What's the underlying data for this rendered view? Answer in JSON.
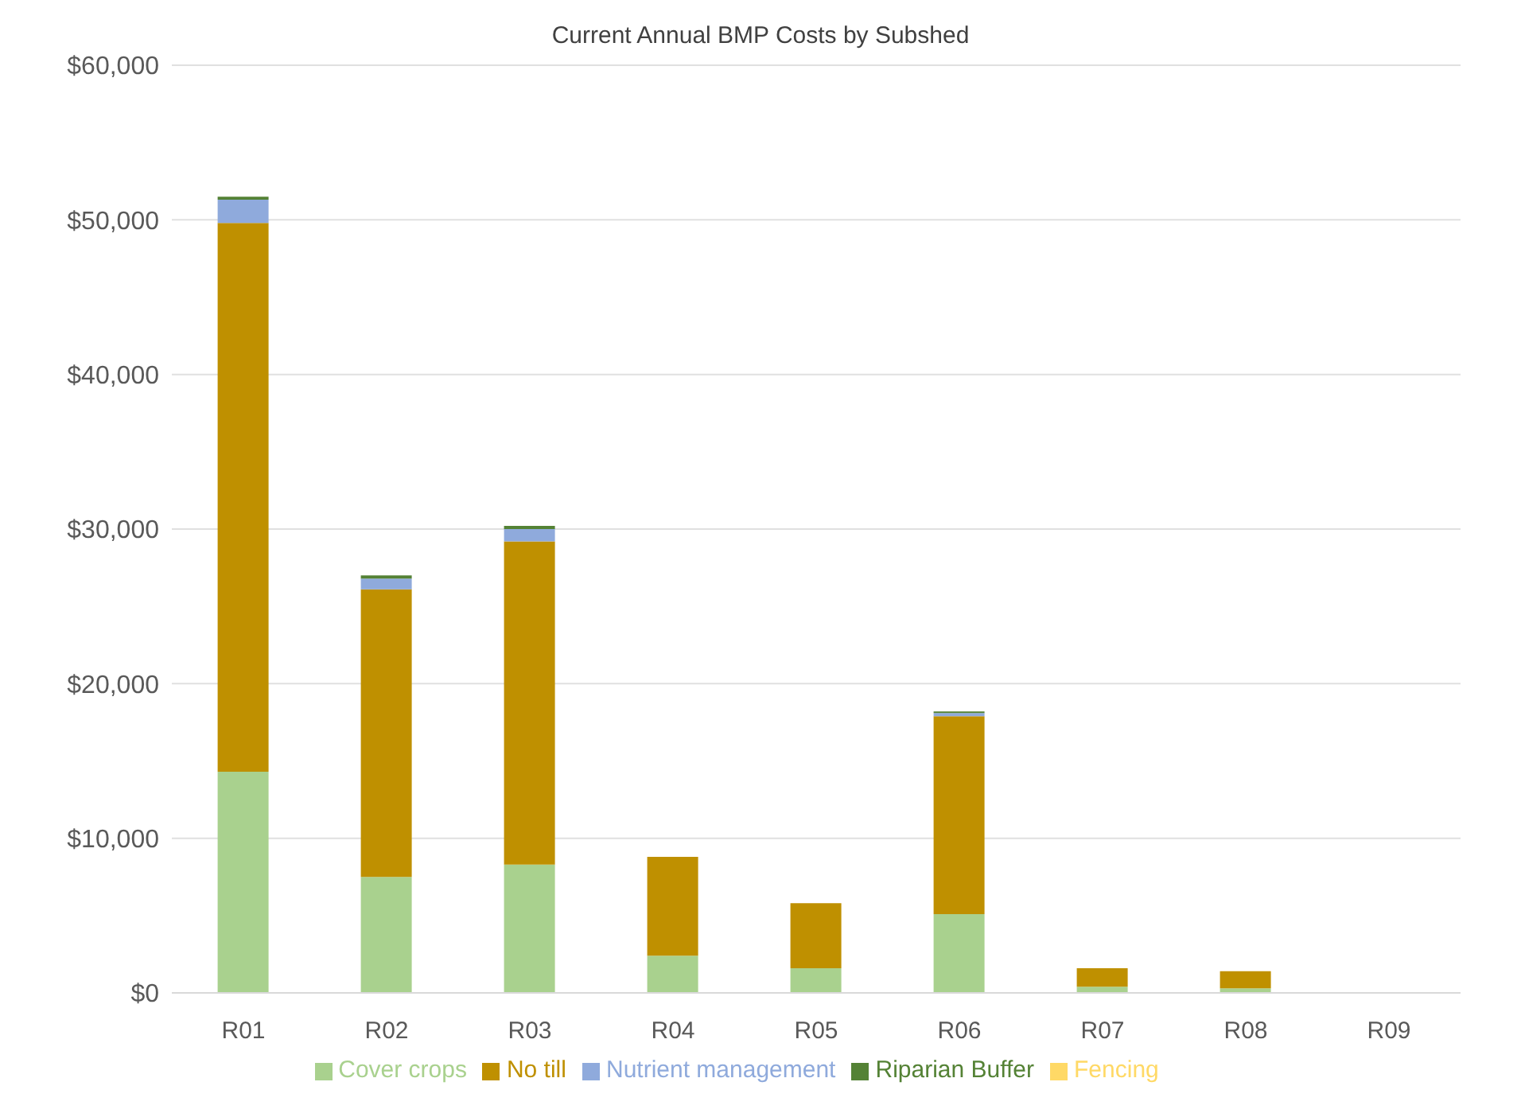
{
  "chart_data": {
    "type": "bar",
    "title": "Current Annual BMP Costs by Subshed",
    "stacked": true,
    "categories": [
      "R01",
      "R02",
      "R03",
      "R04",
      "R05",
      "R06",
      "R07",
      "R08",
      "R09"
    ],
    "series": [
      {
        "name": "Cover crops",
        "color": "#a9d18e",
        "values": [
          14300,
          7500,
          8300,
          2400,
          1600,
          5100,
          400,
          300,
          0
        ]
      },
      {
        "name": "No till",
        "color": "#bf9000",
        "values": [
          35500,
          18600,
          20900,
          6400,
          4200,
          12800,
          1200,
          1100,
          0
        ]
      },
      {
        "name": "Nutrient management",
        "color": "#8faadc",
        "values": [
          1500,
          700,
          800,
          0,
          0,
          200,
          0,
          0,
          0
        ]
      },
      {
        "name": "Riparian Buffer",
        "color": "#548235",
        "values": [
          200,
          200,
          200,
          0,
          0,
          100,
          0,
          0,
          0
        ]
      },
      {
        "name": "Fencing",
        "color": "#ffd966",
        "values": [
          0,
          0,
          0,
          0,
          0,
          0,
          0,
          0,
          0
        ]
      }
    ],
    "ylim": [
      0,
      60000
    ],
    "yticks": [
      {
        "value": 0,
        "label": "$0"
      },
      {
        "value": 10000,
        "label": "$10,000"
      },
      {
        "value": 20000,
        "label": "$20,000"
      },
      {
        "value": 30000,
        "label": "$30,000"
      },
      {
        "value": 40000,
        "label": "$40,000"
      },
      {
        "value": 50000,
        "label": "$50,000"
      },
      {
        "value": 60000,
        "label": "$60,000"
      }
    ],
    "grid": "y",
    "legend": "bottom"
  }
}
